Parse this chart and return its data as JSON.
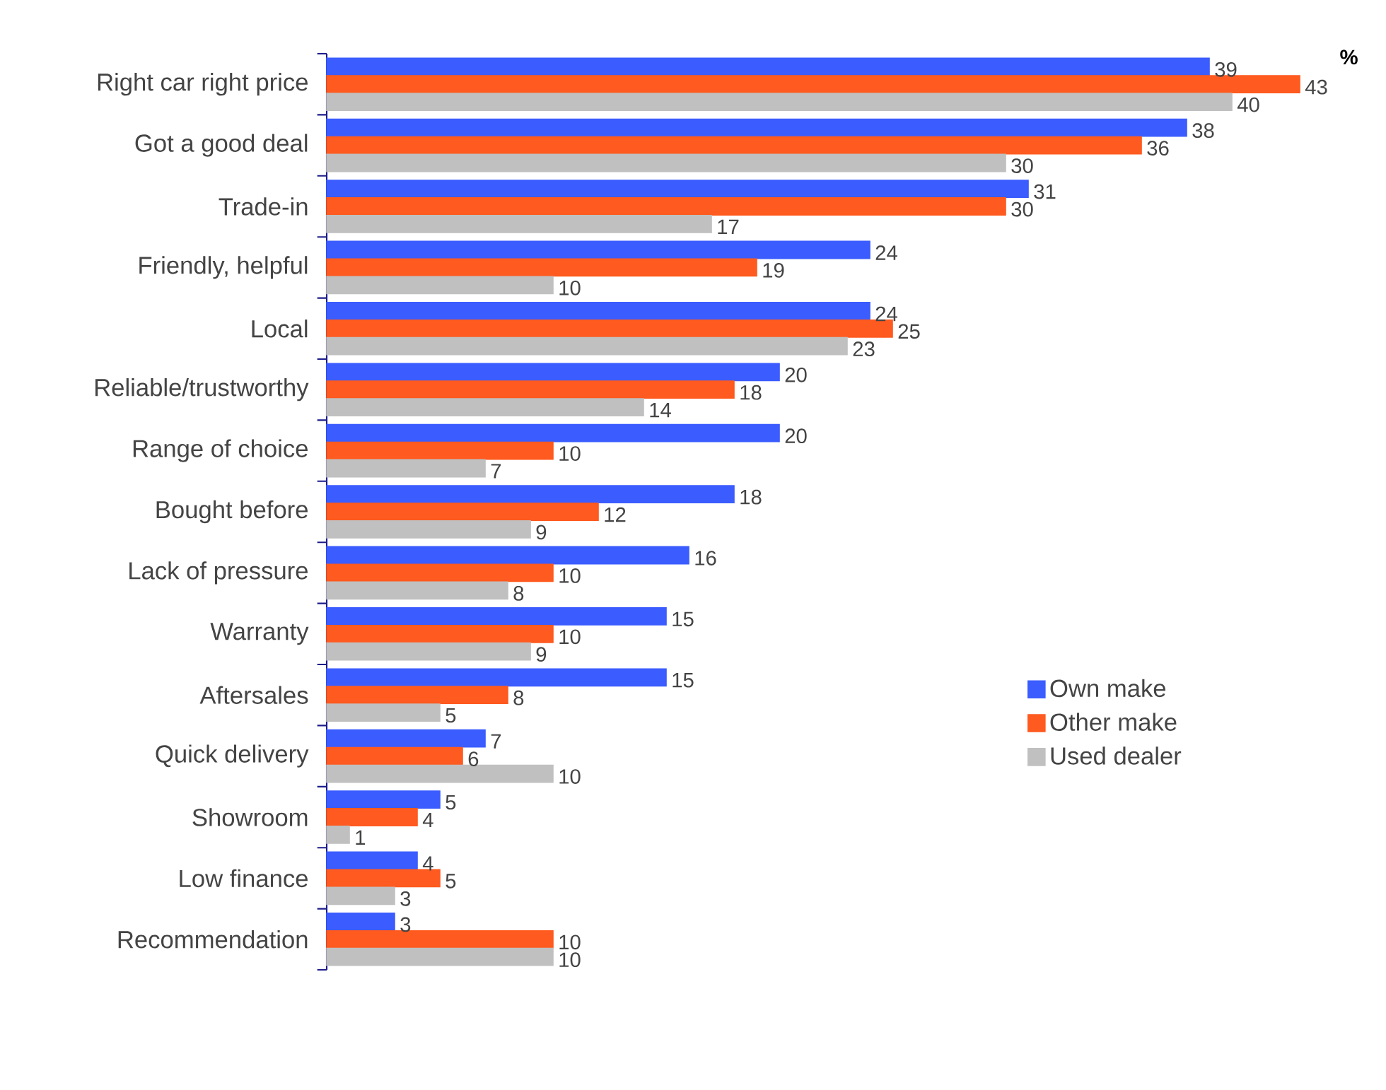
{
  "chart_data": {
    "type": "bar",
    "orientation": "horizontal",
    "xlabel": "%",
    "categories": [
      "Right car right price",
      "Got a good deal",
      "Trade-in",
      "Friendly, helpful",
      "Local",
      "Reliable/trustworthy",
      "Range of choice",
      "Bought before",
      "Lack of pressure",
      "Warranty",
      "Aftersales",
      "Quick delivery",
      "Showroom",
      "Low finance",
      "Recommendation"
    ],
    "series": [
      {
        "name": "Own make",
        "color": "#3b5cff",
        "values": [
          39,
          38,
          31,
          24,
          24,
          20,
          20,
          18,
          16,
          15,
          15,
          7,
          5,
          4,
          3
        ]
      },
      {
        "name": "Other make",
        "color": "#ff5a1f",
        "values": [
          43,
          36,
          30,
          19,
          25,
          18,
          10,
          12,
          10,
          10,
          8,
          6,
          4,
          5,
          10
        ]
      },
      {
        "name": "Used dealer",
        "color": "#c0c0c0",
        "values": [
          40,
          30,
          17,
          10,
          23,
          14,
          7,
          9,
          8,
          9,
          5,
          10,
          1,
          3,
          10
        ]
      }
    ],
    "data_labels": true,
    "legend": "right",
    "tick_labels": "y"
  }
}
